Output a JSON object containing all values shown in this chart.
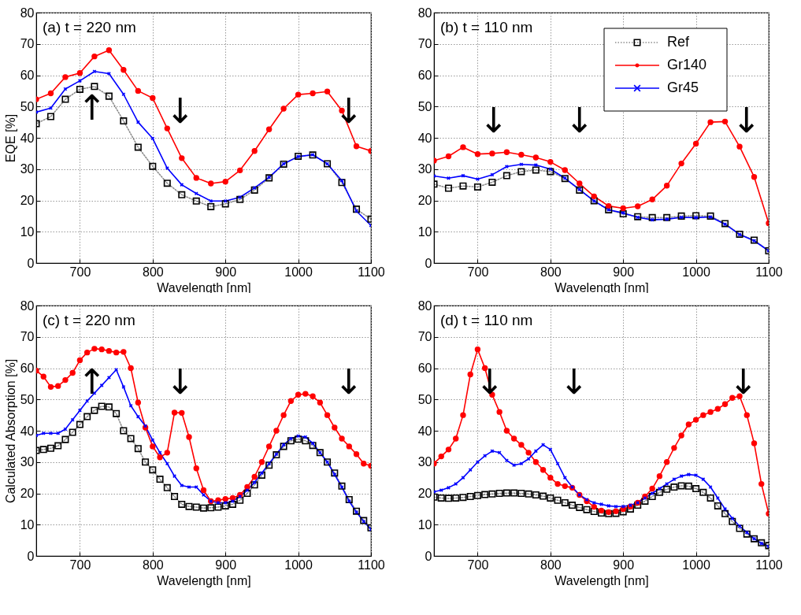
{
  "chart_data": [
    {
      "type": "line",
      "title": "(a) t = 220 nm",
      "xlabel": "Wavelength [nm]",
      "ylabel": "EQE [%]",
      "xlim": [
        640,
        1100
      ],
      "xticks": [
        700,
        800,
        900,
        1000,
        1100
      ],
      "ylim": [
        0,
        80
      ],
      "yticks": [
        0,
        10,
        20,
        30,
        40,
        50,
        60,
        70,
        80
      ],
      "grid": true,
      "x": [
        640,
        660,
        680,
        700,
        720,
        740,
        760,
        780,
        800,
        820,
        840,
        860,
        880,
        900,
        920,
        940,
        960,
        980,
        1000,
        1020,
        1040,
        1060,
        1080,
        1100
      ],
      "series": [
        {
          "color": "#000000",
          "marker": "square",
          "line_style": "dotted",
          "values": [
            44.5,
            46.8,
            52.3,
            55.5,
            56.4,
            53.3,
            45.4,
            37,
            30.9,
            25.5,
            21.8,
            19.8,
            18,
            18.9,
            20.3,
            23.3,
            27.2,
            31.6,
            34.1,
            34.5,
            31.7,
            25.7,
            17.2,
            14
          ]
        },
        {
          "color": "#ff0000",
          "marker": "circle",
          "values": [
            52.3,
            54.2,
            59.4,
            60.7,
            66,
            68,
            61.7,
            55,
            52.7,
            43,
            33.5,
            27.2,
            25.4,
            26,
            29.6,
            35.8,
            42.7,
            49.3,
            53.8,
            54.2,
            54.8,
            48.7,
            37.3,
            35.8
          ]
        },
        {
          "color": "#0000ff",
          "marker": "cross",
          "values": [
            48.2,
            49.5,
            55.6,
            58.2,
            61.2,
            60.5,
            53.9,
            45,
            39.8,
            30.3,
            25,
            22.2,
            19.8,
            19.8,
            21,
            24,
            27.4,
            31.7,
            34,
            34.6,
            31.7,
            26.3,
            16.6,
            12
          ]
        }
      ],
      "annotations": [
        "↑",
        "↓",
        "↓"
      ]
    },
    {
      "type": "line",
      "title": "(b) t = 110 nm",
      "xlabel": "Wavelength [nm]",
      "xlim": [
        640,
        1100
      ],
      "xticks": [
        700,
        800,
        900,
        1000,
        1100
      ],
      "ylim": [
        0,
        80
      ],
      "yticks": [
        0,
        10,
        20,
        30,
        40,
        50,
        60,
        70,
        80
      ],
      "grid": true,
      "legend": "top right",
      "x": [
        640,
        660,
        680,
        700,
        720,
        740,
        760,
        780,
        800,
        820,
        840,
        860,
        880,
        900,
        920,
        940,
        960,
        980,
        1000,
        1020,
        1040,
        1060,
        1080,
        1100
      ],
      "series": [
        {
          "name": "Ref",
          "color": "#000000",
          "marker": "square",
          "line_style": "dotted",
          "values": [
            25.2,
            23.9,
            24.6,
            24.3,
            25.8,
            27.9,
            29.2,
            29.7,
            29.2,
            27,
            23.3,
            19.9,
            17,
            15.7,
            14.8,
            14.5,
            14.5,
            15,
            15.1,
            15,
            12.6,
            9.2,
            7.3,
            3.9
          ]
        },
        {
          "name": "Gr140",
          "color": "#ff0000",
          "marker": "circle",
          "values": [
            32.7,
            34.1,
            37,
            34.8,
            35,
            35.4,
            34.6,
            33.7,
            32.3,
            29.7,
            25.4,
            21.3,
            18.2,
            17.5,
            18.1,
            20.3,
            24.7,
            31.8,
            38.1,
            45,
            45.2,
            37.2,
            27.5,
            12.7
          ]
        },
        {
          "name": "Gr45",
          "color": "#0000ff",
          "marker": "cross",
          "values": [
            27.8,
            27.1,
            27.9,
            26.8,
            28.2,
            30.8,
            31.5,
            31.3,
            30,
            27.1,
            23.5,
            19.8,
            17,
            16,
            14.6,
            13.8,
            14,
            14.6,
            14.5,
            14.7,
            12.4,
            9.1,
            7.1,
            3.9
          ]
        }
      ],
      "annotations": [
        "↓",
        "↓",
        "↓"
      ]
    },
    {
      "type": "line",
      "title": "(c) t = 220 nm",
      "xlabel": "Wavelength [nm]",
      "ylabel": "Calculated Absorption [%]",
      "xlim": [
        640,
        1100
      ],
      "xticks": [
        700,
        800,
        900,
        1000,
        1100
      ],
      "ylim": [
        0,
        80
      ],
      "yticks": [
        0,
        10,
        20,
        30,
        40,
        50,
        60,
        70,
        80
      ],
      "grid": true,
      "x": [
        640,
        650,
        660,
        670,
        680,
        690,
        700,
        710,
        720,
        730,
        740,
        750,
        760,
        770,
        780,
        790,
        800,
        810,
        820,
        830,
        840,
        850,
        860,
        870,
        880,
        890,
        900,
        910,
        920,
        930,
        940,
        950,
        960,
        970,
        980,
        990,
        1000,
        1010,
        1020,
        1030,
        1040,
        1050,
        1060,
        1070,
        1080,
        1090,
        1100
      ],
      "series": [
        {
          "color": "#000000",
          "marker": "square",
          "line_style": "dotted",
          "values": [
            33.7,
            34,
            34.4,
            35.2,
            37.2,
            39.5,
            42,
            44.5,
            46.5,
            47.8,
            47.6,
            45.5,
            40,
            37.5,
            34.3,
            30,
            27.5,
            24.5,
            21.8,
            19,
            16.5,
            15.8,
            15.6,
            15.3,
            15.4,
            15.6,
            16,
            16.5,
            17.8,
            20,
            22.7,
            25.8,
            29,
            32.3,
            35,
            36.8,
            37.3,
            36.8,
            35.3,
            33,
            30,
            26.5,
            22.3,
            18,
            14.3,
            11.3,
            9
          ]
        },
        {
          "color": "#ff0000",
          "marker": "circle",
          "values": [
            59.2,
            57.3,
            54,
            54.3,
            56.2,
            58.5,
            62.5,
            65,
            66.2,
            66,
            65.5,
            65,
            65.2,
            60,
            49,
            41,
            35,
            31.5,
            33,
            45.8,
            45.7,
            38,
            28,
            21,
            17.5,
            17.8,
            18.2,
            18.5,
            19.5,
            22,
            25.3,
            30,
            35,
            40,
            45,
            49.5,
            51.5,
            51.8,
            51,
            49,
            45,
            41,
            37.5,
            35,
            32.5,
            29.5,
            28.8
          ]
        },
        {
          "color": "#0000ff",
          "marker": "cross",
          "values": [
            38.5,
            39.2,
            39.2,
            39.2,
            40.5,
            43.5,
            46.5,
            49.5,
            52,
            54.5,
            57,
            59.5,
            54,
            48,
            44.5,
            41.5,
            37,
            33,
            29.5,
            25.5,
            22.5,
            22,
            22,
            19.5,
            17.5,
            17,
            17,
            17.5,
            19,
            21,
            23.5,
            26.5,
            29.5,
            32.5,
            35.5,
            37.5,
            38.3,
            38,
            36,
            33,
            30,
            26,
            22,
            17.5,
            14,
            11,
            8.5
          ]
        }
      ],
      "annotations": [
        "↑",
        "↓",
        "↓"
      ]
    },
    {
      "type": "line",
      "title": "(d) t = 110 nm",
      "xlabel": "Wavelength [nm]",
      "xlim": [
        640,
        1100
      ],
      "xticks": [
        700,
        800,
        900,
        1000,
        1100
      ],
      "ylim": [
        0,
        80
      ],
      "yticks": [
        0,
        10,
        20,
        30,
        40,
        50,
        60,
        70,
        80
      ],
      "grid": true,
      "x": [
        640,
        650,
        660,
        670,
        680,
        690,
        700,
        710,
        720,
        730,
        740,
        750,
        760,
        770,
        780,
        790,
        800,
        810,
        820,
        830,
        840,
        850,
        860,
        870,
        880,
        890,
        900,
        910,
        920,
        930,
        940,
        950,
        960,
        970,
        980,
        990,
        1000,
        1010,
        1020,
        1030,
        1040,
        1050,
        1060,
        1070,
        1080,
        1090,
        1100
      ],
      "series": [
        {
          "color": "#000000",
          "marker": "square",
          "line_style": "dotted",
          "values": [
            18.8,
            18.5,
            18.4,
            18.5,
            18.7,
            19,
            19.3,
            19.6,
            19.8,
            20,
            20.1,
            20.1,
            20,
            19.8,
            19.5,
            19.1,
            18.5,
            17.8,
            17,
            16.2,
            15.5,
            14.8,
            14.2,
            13.7,
            13.5,
            13.6,
            14.1,
            15,
            16.2,
            17.5,
            19,
            20.3,
            21.3,
            22,
            22.4,
            22.3,
            21.5,
            20.3,
            18.5,
            16,
            13.5,
            11,
            8.8,
            7,
            5.5,
            4.2,
            3.3
          ]
        },
        {
          "color": "#ff0000",
          "marker": "circle",
          "values": [
            29.5,
            31.8,
            34,
            37.5,
            45,
            58,
            66,
            60,
            51.5,
            46,
            40,
            37.5,
            35.5,
            33,
            30,
            27.5,
            25,
            23,
            22.3,
            21.8,
            19.5,
            17.5,
            15.7,
            14.5,
            14,
            14.3,
            15,
            15.8,
            17,
            19,
            21.5,
            25.5,
            30,
            34.5,
            38.5,
            42,
            43.5,
            45,
            46,
            47,
            48.5,
            50.5,
            51,
            45,
            36,
            23,
            13.5
          ]
        },
        {
          "color": "#0000ff",
          "marker": "cross",
          "values": [
            20.5,
            21,
            21.8,
            23,
            25,
            27.5,
            30,
            32,
            33.5,
            33,
            30.5,
            29,
            29.5,
            31,
            33.5,
            35.5,
            34,
            29.5,
            25,
            22,
            19.5,
            18,
            17,
            16.5,
            16,
            15.8,
            15.8,
            16.2,
            17,
            18.5,
            20,
            21.5,
            23,
            24.5,
            25.5,
            26,
            25.8,
            24.5,
            22,
            18.5,
            15,
            12,
            9.5,
            7.5,
            5.5,
            4,
            3
          ]
        }
      ],
      "annotations": [
        "↓",
        "↓",
        "↓"
      ]
    }
  ]
}
